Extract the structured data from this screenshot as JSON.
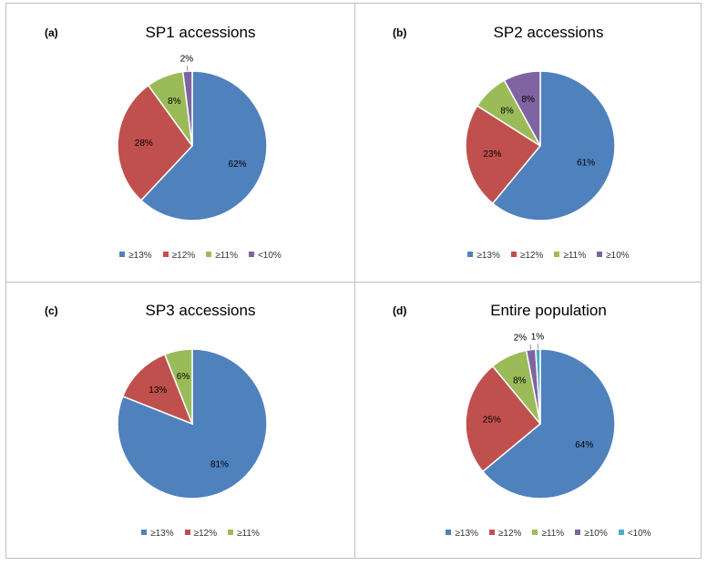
{
  "colors": {
    "blue": "#4f81bd",
    "red": "#c0504d",
    "green": "#9bbb59",
    "purple": "#8064a2",
    "cyan": "#4bacc6"
  },
  "chart_data": [
    {
      "type": "pie",
      "panel_label": "(a)",
      "title": "SP1 accessions",
      "categories": [
        "≥13%",
        "≥12%",
        "≥11%",
        "<10%"
      ],
      "values": [
        62,
        28,
        8,
        2
      ],
      "labels": [
        "62%",
        "28%",
        "8%",
        "2%"
      ],
      "colors": [
        "#4f81bd",
        "#c0504d",
        "#9bbb59",
        "#8064a2"
      ],
      "legend": "bottom"
    },
    {
      "type": "pie",
      "panel_label": "(b)",
      "title": "SP2 accessions",
      "categories": [
        "≥13%",
        "≥12%",
        "≥11%",
        "≥10%"
      ],
      "values": [
        61,
        23,
        8,
        8
      ],
      "labels": [
        "61%",
        "23%",
        "8%",
        "8%"
      ],
      "colors": [
        "#4f81bd",
        "#c0504d",
        "#9bbb59",
        "#8064a2"
      ],
      "legend": "bottom"
    },
    {
      "type": "pie",
      "panel_label": "(c)",
      "title": "SP3 accessions",
      "categories": [
        "≥13%",
        "≥12%",
        "≥11%"
      ],
      "values": [
        81,
        13,
        6
      ],
      "labels": [
        "81%",
        "13%",
        "6%"
      ],
      "colors": [
        "#4f81bd",
        "#c0504d",
        "#9bbb59"
      ],
      "legend": "bottom"
    },
    {
      "type": "pie",
      "panel_label": "(d)",
      "title": "Entire population",
      "categories": [
        "≥13%",
        "≥12%",
        "≥11%",
        "≥10%",
        "<10%"
      ],
      "values": [
        64,
        25,
        8,
        2,
        1
      ],
      "labels": [
        "64%",
        "25%",
        "8%",
        "2%",
        "1%"
      ],
      "colors": [
        "#4f81bd",
        "#c0504d",
        "#9bbb59",
        "#8064a2",
        "#4bacc6"
      ],
      "legend": "bottom"
    }
  ]
}
